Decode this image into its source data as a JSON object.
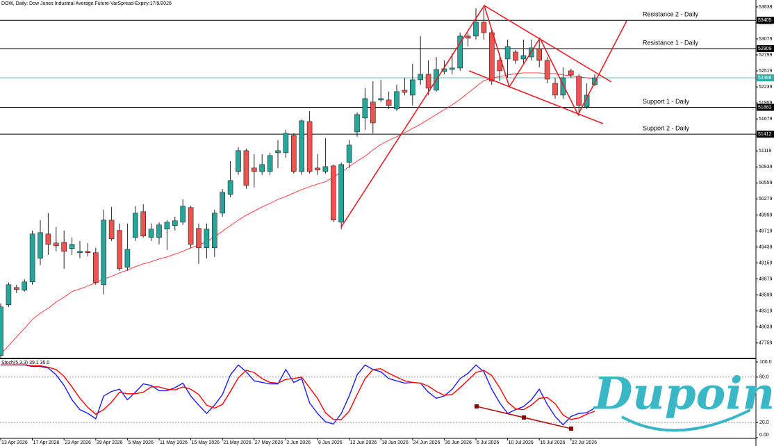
{
  "chart_data": [
    {
      "type": "candlestick",
      "title": "DOW, Daily: Dow Jones Industrial Average Future-VarSpread-Expiry:17/9/2026",
      "categories": [
        "13 Apr 2026",
        null,
        null,
        null,
        "17 Apr 2026",
        null,
        null,
        null,
        "23 Apr 2026",
        null,
        null,
        null,
        "29 Apr 2026",
        null,
        null,
        null,
        "5 May 2026",
        null,
        null,
        null,
        "11 May 2026",
        null,
        null,
        null,
        "15 May 2026",
        null,
        null,
        null,
        "21 May 2026",
        null,
        null,
        null,
        "27 May 2026",
        null,
        null,
        null,
        "2 Jun 2026",
        null,
        null,
        null,
        "8 Jun 2026",
        null,
        null,
        null,
        "12 Jun 2026",
        null,
        null,
        null,
        "18 Jun 2026",
        null,
        null,
        null,
        "24 Jun 2026",
        null,
        null,
        null,
        "30 Jun 2026",
        null,
        null,
        null,
        "6 Jul 2026",
        null,
        null,
        null,
        "10 Jul 2026",
        null,
        null,
        null,
        "16 Jul 2026",
        null,
        null,
        null,
        "22 Jul 2026",
        null,
        null,
        null
      ],
      "open": [
        47540,
        48426,
        48730,
        48682,
        48827,
        49241,
        49666,
        49508,
        49520,
        49411,
        49338,
        49362,
        49338,
        48778,
        49909,
        49727,
        49083,
        49605,
        50055,
        49605,
        49605,
        49751,
        49812,
        49872,
        50128,
        49763,
        49423,
        49423,
        50030,
        50358,
        50759,
        51124,
        50820,
        50759,
        50759,
        51087,
        51087,
        51391,
        50759,
        51634,
        50820,
        50759,
        50857,
        49872,
        50917,
        51452,
        51695,
        51974,
        52011,
        52011,
        51853,
        52181,
        52096,
        52363,
        52460,
        52181,
        52509,
        52545,
        52570,
        53129,
        53129,
        53372,
        53189,
        52703,
        52728,
        52849,
        52728,
        52764,
        52910,
        52703,
        52302,
        52096,
        52521,
        52424,
        51889,
        52278
      ],
      "high": [
        48451,
        48815,
        48778,
        48876,
        49727,
        49909,
        50030,
        49787,
        49727,
        49605,
        49544,
        49508,
        49423,
        50091,
        50140,
        49848,
        49848,
        50152,
        50188,
        49848,
        49872,
        49909,
        49970,
        50273,
        50164,
        49848,
        49848,
        50091,
        50456,
        50942,
        51184,
        51160,
        51063,
        51063,
        51087,
        51306,
        51488,
        51428,
        51671,
        51816,
        51063,
        51342,
        50881,
        50917,
        51306,
        51792,
        52217,
        52339,
        52363,
        52157,
        52278,
        52400,
        52643,
        53129,
        52703,
        52764,
        52703,
        52825,
        53189,
        53189,
        53614,
        53614,
        53250,
        52825,
        53068,
        52886,
        53068,
        53068,
        53068,
        52764,
        52400,
        52582,
        52557,
        52460,
        52302,
        52460
      ],
      "low": [
        47479,
        48390,
        48633,
        48657,
        48778,
        49119,
        49301,
        49362,
        49058,
        49301,
        49241,
        49277,
        48778,
        48609,
        49544,
        49022,
        49022,
        49544,
        49605,
        49544,
        49484,
        49386,
        49727,
        49824,
        49423,
        49144,
        49241,
        49265,
        49970,
        50310,
        50699,
        50456,
        50480,
        50699,
        50699,
        50820,
        51002,
        50723,
        50699,
        50723,
        50699,
        50723,
        49872,
        49751,
        50820,
        51367,
        51488,
        51428,
        51974,
        51853,
        51816,
        52096,
        51914,
        52278,
        52096,
        52157,
        52460,
        52460,
        52521,
        52946,
        53068,
        53068,
        52278,
        52339,
        52400,
        52643,
        52643,
        52703,
        52582,
        52302,
        52035,
        52035,
        52400,
        51731,
        51853,
        52254
      ],
      "close": [
        48390,
        48778,
        48694,
        48827,
        49666,
        49690,
        49484,
        49459,
        49362,
        49484,
        49362,
        49338,
        48815,
        49909,
        49581,
        49058,
        49398,
        50030,
        49630,
        49751,
        49824,
        49872,
        49897,
        50152,
        49484,
        49423,
        49751,
        50030,
        50395,
        50601,
        51124,
        50516,
        50759,
        50881,
        51039,
        51124,
        51428,
        50759,
        51646,
        50759,
        50784,
        50844,
        49909,
        50881,
        51221,
        51756,
        52035,
        51610,
        52035,
        51914,
        52157,
        52144,
        52363,
        52460,
        52217,
        52545,
        52557,
        52570,
        53129,
        53092,
        53372,
        53189,
        52339,
        52521,
        52946,
        52703,
        52788,
        52922,
        52703,
        52375,
        52096,
        52400,
        52448,
        51914,
        52096,
        52398
      ],
      "up_color": "#26a69a",
      "down_color": "#ef5350",
      "ylim": [
        47500,
        53760
      ],
      "yticks": [
        53639,
        53359,
        53079,
        52799,
        52519,
        52239,
        51959,
        51679,
        51399,
        51119,
        50839,
        50559,
        50279,
        49999,
        49719,
        49439,
        49159,
        48879,
        48599,
        48319,
        48039,
        47759
      ],
      "levels": [
        {
          "label": "Resistance 2 - Daily",
          "value": 53405
        },
        {
          "label": "Resistance 1 - Daily",
          "value": 52909
        },
        {
          "label": "Support 1 - Daily",
          "value": 51882
        },
        {
          "label": "Support 2 - Daily",
          "value": 51412
        }
      ],
      "current_price": 52398,
      "ma": {
        "color": "#ff3030",
        "values": [
          47564,
          47710,
          47867,
          48013,
          48171,
          48281,
          48366,
          48475,
          48560,
          48657,
          48706,
          48755,
          48815,
          48876,
          48925,
          48985,
          49034,
          49095,
          49143,
          49180,
          49228,
          49265,
          49313,
          49362,
          49423,
          49471,
          49532,
          49617,
          49714,
          49812,
          49909,
          49994,
          50067,
          50140,
          50200,
          50273,
          50322,
          50383,
          50443,
          50492,
          50540,
          50577,
          50662,
          50747,
          50844,
          50942,
          51027,
          51136,
          51233,
          51306,
          51367,
          51440,
          51512,
          51585,
          51671,
          51756,
          51841,
          51926,
          52023,
          52132,
          52242,
          52351,
          52387,
          52424,
          52448,
          52472,
          52485,
          52485,
          52485,
          52472,
          52472,
          52448,
          52436,
          52412,
          52400,
          52375
        ]
      }
    },
    {
      "type": "line",
      "title": "Stoch(5,3,3) 39.1 35.0",
      "ylim": [
        0,
        100
      ],
      "yticks": [
        {
          "value": 100,
          "label": "100.0"
        },
        {
          "value": 80,
          "label": "80.0"
        },
        {
          "value": 20,
          "label": "20.0"
        },
        {
          "value": 0,
          "label": "0.00"
        }
      ],
      "levels": [
        80,
        20
      ],
      "series": [
        {
          "color": "#1a1aff",
          "values": [
            96,
            96,
            96,
            96,
            94,
            94,
            92,
            83,
            69,
            50,
            37,
            32,
            25,
            55,
            61,
            64,
            50,
            60,
            71,
            69,
            62,
            62,
            66,
            72,
            55,
            43,
            32,
            43,
            57,
            83,
            96,
            87,
            75,
            73,
            71,
            71,
            90,
            73,
            78,
            46,
            32,
            21,
            18,
            32,
            55,
            83,
            96,
            90,
            87,
            78,
            75,
            72,
            73,
            72,
            60,
            52,
            55,
            64,
            78,
            85,
            96,
            87,
            64,
            46,
            32,
            37,
            41,
            50,
            64,
            44,
            28,
            17,
            28,
            32,
            33,
            39.1
          ]
        },
        {
          "color": "#ff0000",
          "values": [
            96,
            96,
            96,
            96,
            95,
            95,
            93,
            90,
            81,
            67,
            52,
            40,
            31,
            37,
            47,
            60,
            58,
            58,
            60,
            67,
            67,
            64,
            63,
            67,
            64,
            57,
            43,
            39,
            44,
            61,
            79,
            89,
            86,
            78,
            73,
            72,
            77,
            78,
            80,
            66,
            52,
            33,
            24,
            24,
            35,
            57,
            78,
            90,
            91,
            85,
            80,
            75,
            73,
            72,
            68,
            61,
            56,
            57,
            66,
            76,
            86,
            89,
            82,
            66,
            47,
            38,
            37,
            43,
            52,
            53,
            45,
            30,
            24,
            26,
            31,
            35.0
          ]
        }
      ]
    }
  ],
  "logo": "Dupoin"
}
